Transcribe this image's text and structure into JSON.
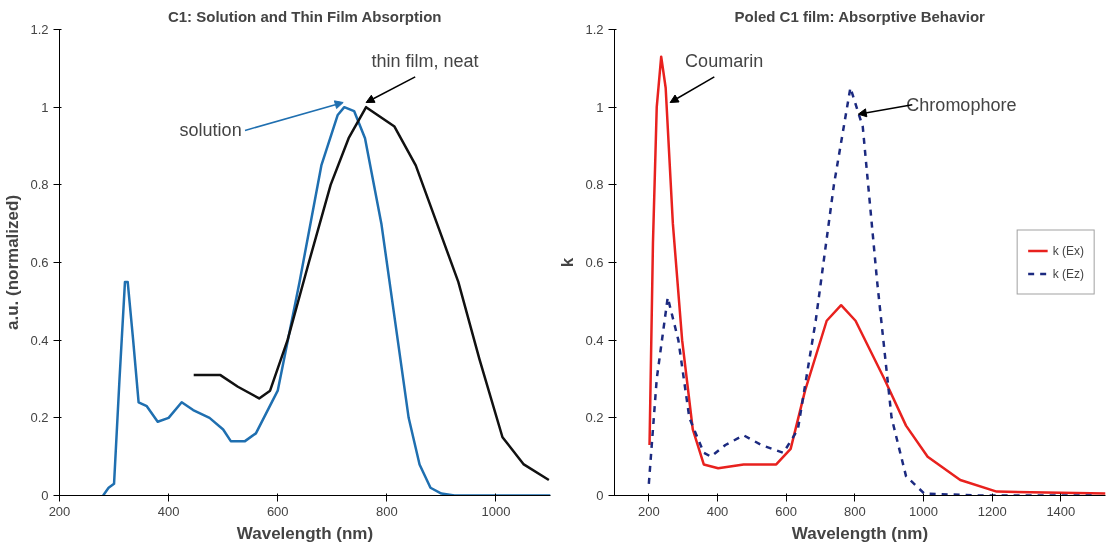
{
  "chart_data": [
    {
      "type": "line",
      "title": "C1: Solution and Thin Film Absorption",
      "xlabel": "Wavelength (nm)",
      "ylabel": "a.u. (normalized)",
      "xlim": [
        200,
        1100
      ],
      "ylim": [
        0,
        1.2
      ],
      "xticks": [
        200,
        400,
        600,
        800,
        1000
      ],
      "yticks": [
        0,
        0.2,
        0.4,
        0.6,
        0.8,
        1,
        1.2
      ],
      "grid": false,
      "legend": false,
      "line_style": "solid",
      "annotations": [
        {
          "text": "solution",
          "x": 720,
          "y": 1.0
        },
        {
          "text": "thin film, neat",
          "x": 762,
          "y": 1.0
        }
      ],
      "series": [
        {
          "color": "#1f6fb0",
          "x": [
            280,
            290,
            300,
            310,
            320,
            325,
            335,
            345,
            360,
            380,
            400,
            424,
            445,
            475,
            500,
            514,
            540,
            560,
            600,
            640,
            680,
            710,
            722,
            740,
            760,
            790,
            820,
            840,
            860,
            880,
            900,
            924,
            1000,
            1100
          ],
          "values": [
            0,
            0.02,
            0.03,
            0.3,
            0.55,
            0.55,
            0.4,
            0.24,
            0.23,
            0.19,
            0.2,
            0.24,
            0.22,
            0.2,
            0.17,
            0.14,
            0.14,
            0.16,
            0.27,
            0.55,
            0.85,
            0.98,
            1.0,
            0.99,
            0.92,
            0.7,
            0.4,
            0.2,
            0.08,
            0.02,
            0.005,
            0,
            0,
            0
          ]
        },
        {
          "color": "#111111",
          "x": [
            446,
            495,
            527,
            566,
            586,
            618,
            657,
            697,
            730,
            762,
            814,
            853,
            892,
            931,
            970,
            1012,
            1051,
            1097
          ],
          "values": [
            0.31,
            0.31,
            0.28,
            0.25,
            0.27,
            0.4,
            0.6,
            0.8,
            0.92,
            1.0,
            0.95,
            0.85,
            0.7,
            0.55,
            0.35,
            0.15,
            0.08,
            0.04
          ]
        }
      ]
    },
    {
      "type": "line",
      "title": "Poled C1 film: Absorptive Behavior",
      "xlabel": "Wavelength (nm)",
      "ylabel": "k",
      "xlim": [
        100,
        1530
      ],
      "ylim": [
        0,
        1.2
      ],
      "xticks": [
        200,
        400,
        600,
        800,
        1000,
        1200,
        1400
      ],
      "yticks": [
        0,
        0.2,
        0.4,
        0.6,
        0.8,
        1,
        1.2
      ],
      "grid": false,
      "legend": "right",
      "annotations": [
        {
          "text": "Coumarin",
          "x": 262,
          "y": 1.0
        },
        {
          "text": "Chromophore",
          "x": 810,
          "y": 0.97
        }
      ],
      "series": [
        {
          "name": "k (Ex)",
          "color": "#e8211e",
          "line_style": "solid",
          "x": [
            202,
            212,
            223,
            236,
            249,
            270,
            297,
            328,
            360,
            402,
            476,
            571,
            613,
            655,
            718,
            760,
            802,
            886,
            949,
            1012,
            1107,
            1213,
            1530
          ],
          "values": [
            0.13,
            0.65,
            1.0,
            1.13,
            1.05,
            0.7,
            0.4,
            0.17,
            0.08,
            0.07,
            0.08,
            0.08,
            0.12,
            0.27,
            0.45,
            0.49,
            0.45,
            0.3,
            0.18,
            0.1,
            0.04,
            0.01,
            0.005
          ]
        },
        {
          "name": "k (Ez)",
          "color": "#1c2a80",
          "line_style": "dashed",
          "x": [
            200,
            223,
            255,
            286,
            318,
            360,
            381,
            423,
            476,
            528,
            592,
            634,
            686,
            739,
            787,
            823,
            865,
            907,
            949,
            1002,
            1160,
            1500
          ],
          "values": [
            0.03,
            0.3,
            0.51,
            0.4,
            0.2,
            0.11,
            0.1,
            0.13,
            0.155,
            0.13,
            0.11,
            0.17,
            0.45,
            0.8,
            1.05,
            0.95,
            0.55,
            0.2,
            0.05,
            0.005,
            0,
            0
          ]
        }
      ]
    }
  ]
}
